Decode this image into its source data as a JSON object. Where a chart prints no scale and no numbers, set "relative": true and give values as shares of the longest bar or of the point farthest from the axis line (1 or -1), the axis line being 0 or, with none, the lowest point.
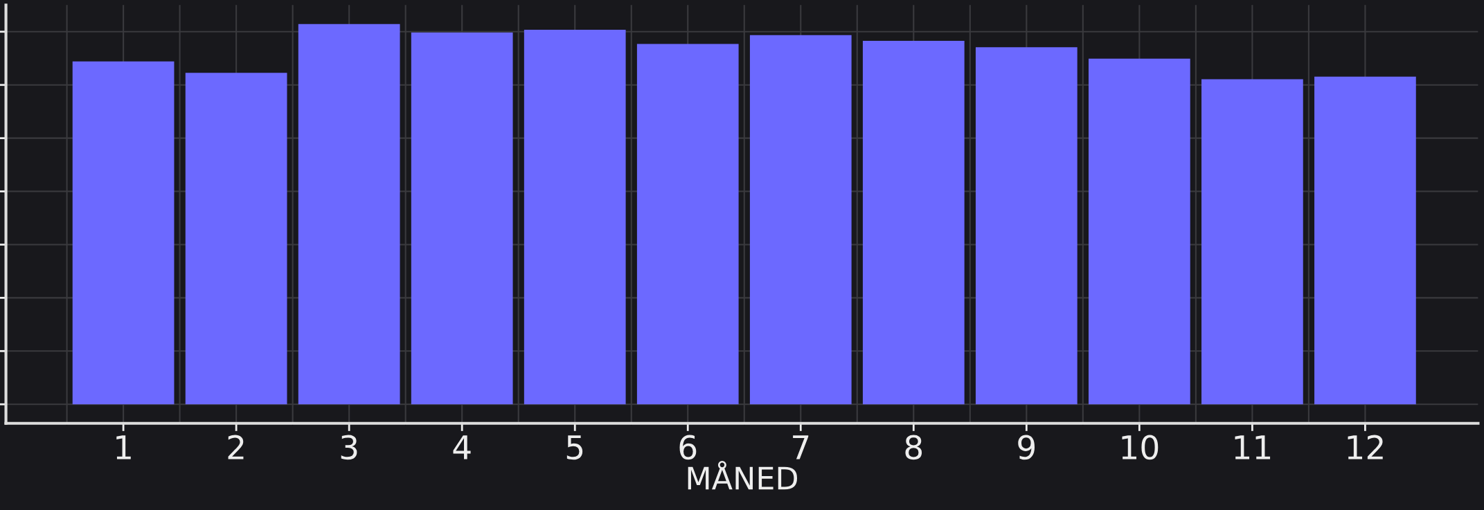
{
  "chart_data": {
    "type": "bar",
    "relative": true,
    "xlabel": "MÅNED",
    "categories": [
      "1",
      "2",
      "3",
      "4",
      "5",
      "6",
      "7",
      "8",
      "9",
      "10",
      "11",
      "12"
    ],
    "values": [
      0.902,
      0.872,
      1,
      0.978,
      0.985,
      0.948,
      0.971,
      0.956,
      0.939,
      0.909,
      0.855,
      0.862
    ],
    "color": "#6c69ff",
    "grid": true
  }
}
